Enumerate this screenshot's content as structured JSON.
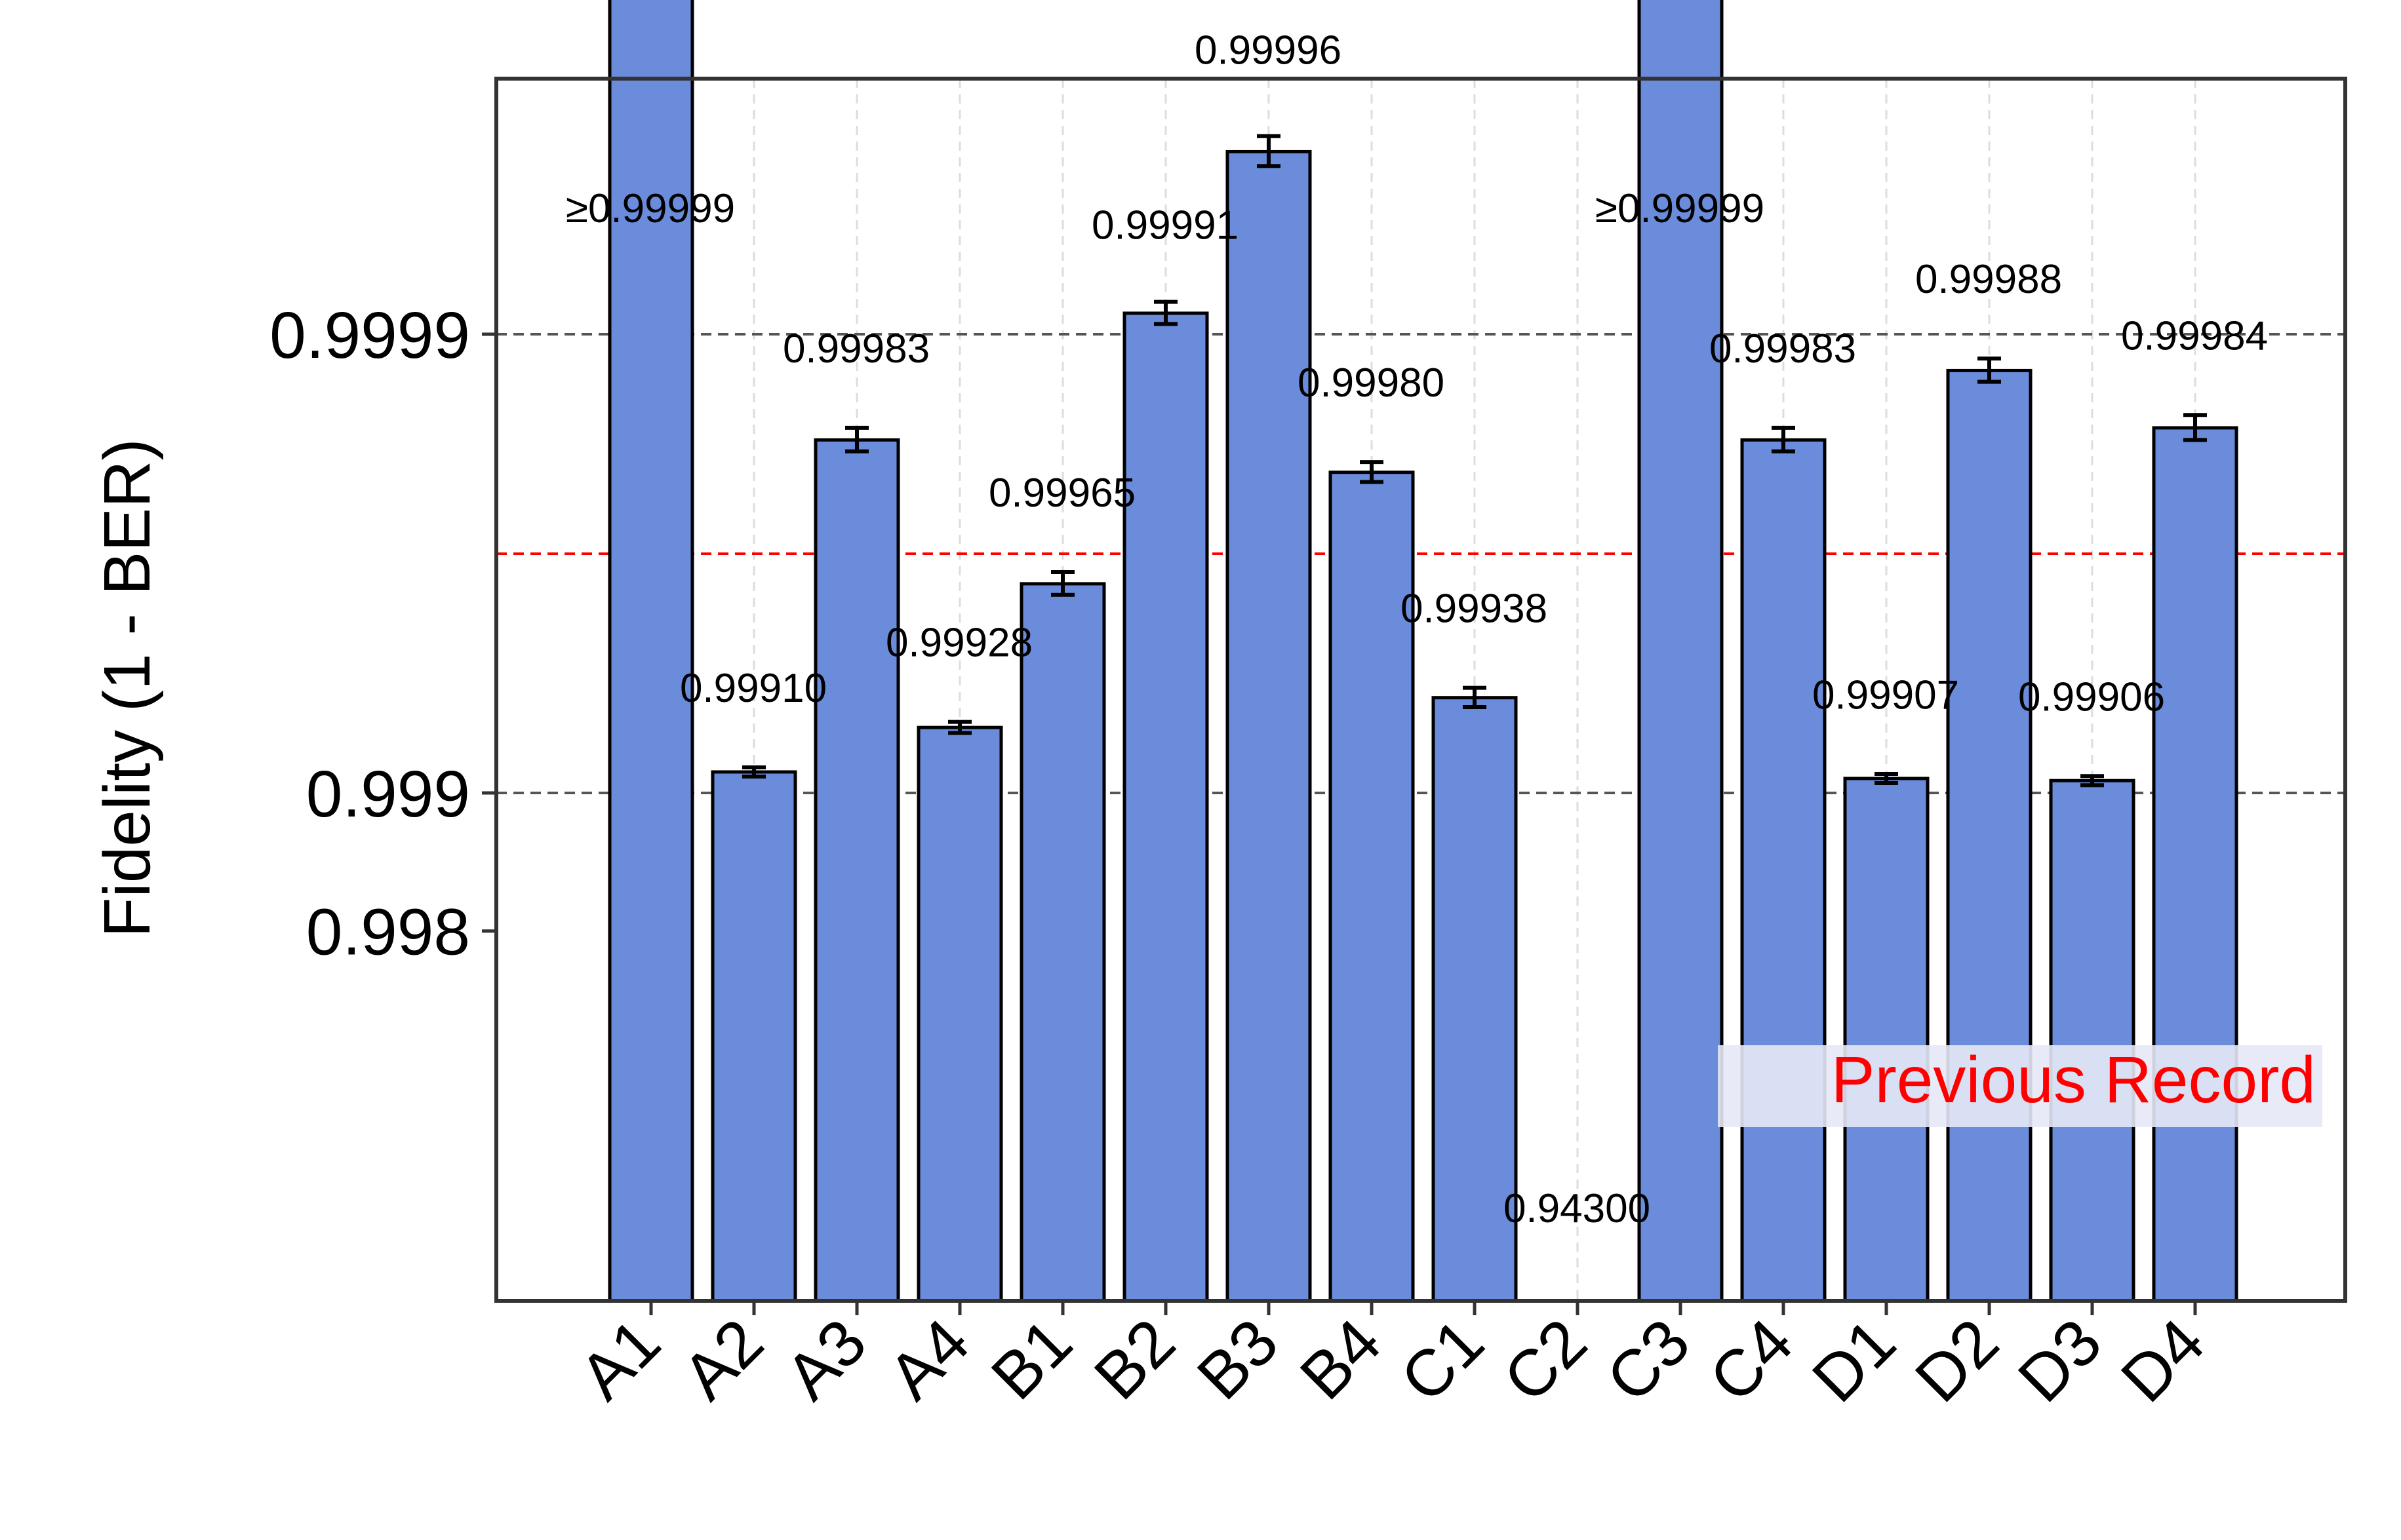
{
  "chart_data": {
    "type": "bar",
    "title": "",
    "xlabel": "",
    "ylabel": "Fidelity (1 - BER)",
    "y_scale": "log of (1 - fidelity), inverted",
    "yticks": [
      0.998,
      0.999,
      0.9999
    ],
    "ytick_labels": [
      "0.998",
      "0.999",
      "0.9999"
    ],
    "categories": [
      "A1",
      "A2",
      "A3",
      "A4",
      "B1",
      "B2",
      "B3",
      "B4",
      "C1",
      "C2",
      "C3",
      "C4",
      "D1",
      "D2",
      "D3",
      "D4"
    ],
    "values": [
      0.999991,
      0.9991,
      0.99983,
      0.99928,
      0.99965,
      0.99991,
      0.99996,
      0.9998,
      0.99938,
      0.943,
      0.999991,
      0.99983,
      0.99907,
      0.99988,
      0.99906,
      0.99984
    ],
    "value_labels": [
      "≥0.99999",
      "0.99910",
      "0.99983",
      "0.99928",
      "0.99965",
      "0.99991",
      "0.99996",
      "0.99980",
      "0.99938",
      "0.94300",
      "≥0.99999",
      "0.99983",
      "0.99907",
      "0.99988",
      "0.99906",
      "0.99984"
    ],
    "error": [
      3e-07,
      2e-05,
      1e-05,
      2e-05,
      2e-05,
      5e-06,
      3e-06,
      1e-05,
      3e-05,
      0,
      3e-07,
      1e-05,
      2e-05,
      7e-06,
      2e-05,
      1e-05
    ],
    "reference_lines": [
      {
        "value": 0.9999,
        "style": "dashed",
        "color": "#555555"
      },
      {
        "value": 0.999,
        "style": "dashed",
        "color": "#555555"
      }
    ],
    "record_line": {
      "value": 0.9997,
      "label": "Previous Record",
      "color": "#ff0000"
    },
    "grid": "vertical dashed",
    "bar_color": "#6a8cdb",
    "edge_color": "#000000"
  }
}
